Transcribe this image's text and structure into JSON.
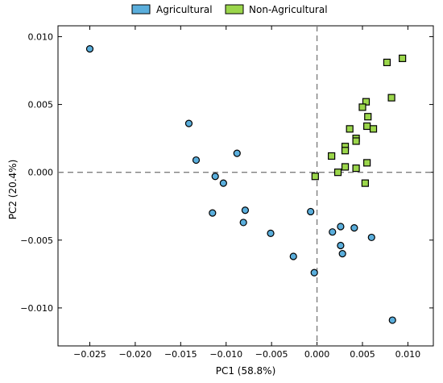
{
  "chart_data": {
    "type": "scatter",
    "title": "",
    "xlabel": "PC1 (58.8%)",
    "ylabel": "PC2 (20.4%)",
    "xlim": [
      -0.0285,
      0.0128
    ],
    "ylim": [
      -0.0128,
      0.0108
    ],
    "x_ticks": [
      -0.025,
      -0.02,
      -0.015,
      -0.01,
      -0.005,
      0.0,
      0.005,
      0.01
    ],
    "x_tick_labels": [
      "−0.025",
      "−0.020",
      "−0.015",
      "−0.010",
      "−0.005",
      "0.000",
      "0.005",
      "0.010"
    ],
    "y_ticks": [
      0.01,
      0.005,
      0.0,
      -0.005,
      -0.01
    ],
    "y_tick_labels": [
      "0.010",
      "0.005",
      "0.000",
      "−0.005",
      "−0.010"
    ],
    "grid": false,
    "reference_lines": {
      "x": 0.0,
      "y": 0.0,
      "style": "dashed",
      "color": "#7f7f7f"
    },
    "legend": {
      "placement": "top-center, outside",
      "ncol": 2
    },
    "series": [
      {
        "name": "Agricultural",
        "marker": "circle",
        "color": "#5aaedc",
        "points": [
          [
            -0.025,
            0.0091
          ],
          [
            -0.0141,
            0.0036
          ],
          [
            -0.0133,
            0.0009
          ],
          [
            -0.0112,
            -0.0003
          ],
          [
            -0.0103,
            -0.0008
          ],
          [
            -0.0088,
            0.0014
          ],
          [
            -0.0115,
            -0.003
          ],
          [
            -0.0079,
            -0.0028
          ],
          [
            -0.0081,
            -0.0037
          ],
          [
            -0.0051,
            -0.0045
          ],
          [
            -0.0026,
            -0.0062
          ],
          [
            -0.0007,
            -0.0029
          ],
          [
            -0.0003,
            -0.0074
          ],
          [
            0.0017,
            -0.0044
          ],
          [
            0.0026,
            -0.004
          ],
          [
            0.0041,
            -0.0041
          ],
          [
            0.0026,
            -0.0054
          ],
          [
            0.0028,
            -0.006
          ],
          [
            0.006,
            -0.0048
          ],
          [
            0.0083,
            -0.0109
          ]
        ]
      },
      {
        "name": "Non-Agricultural",
        "marker": "square",
        "color": "#9bd64b",
        "points": [
          [
            0.0077,
            0.0081
          ],
          [
            0.0094,
            0.0084
          ],
          [
            0.0082,
            0.0055
          ],
          [
            0.0054,
            0.0052
          ],
          [
            0.005,
            0.0048
          ],
          [
            0.0056,
            0.0041
          ],
          [
            0.0036,
            0.0032
          ],
          [
            0.0055,
            0.0034
          ],
          [
            0.0062,
            0.0032
          ],
          [
            0.0043,
            0.0025
          ],
          [
            0.0043,
            0.0023
          ],
          [
            0.0031,
            0.0019
          ],
          [
            0.0031,
            0.0016
          ],
          [
            0.0016,
            0.0012
          ],
          [
            0.0055,
            0.0007
          ],
          [
            0.0031,
            0.0004
          ],
          [
            0.0043,
            0.0003
          ],
          [
            0.0023,
            0.0
          ],
          [
            -0.0002,
            -0.0003
          ],
          [
            0.0053,
            -0.0008
          ]
        ]
      }
    ]
  }
}
